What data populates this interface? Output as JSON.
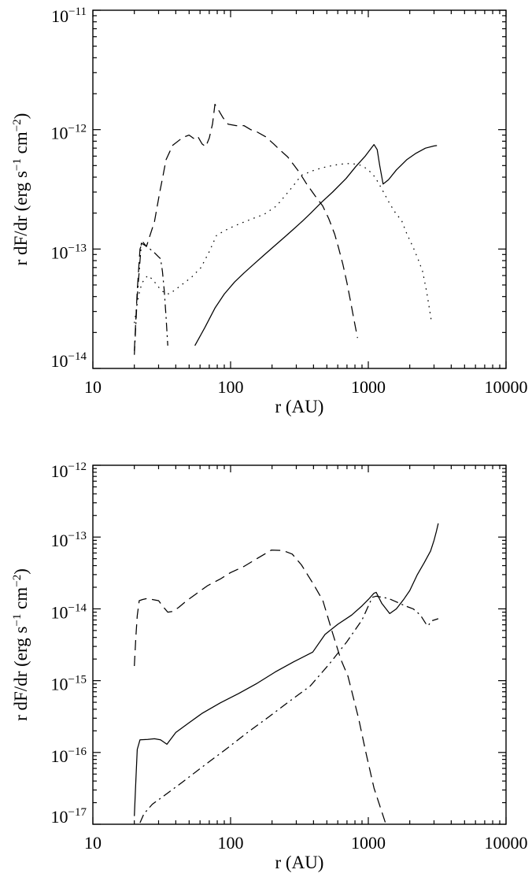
{
  "page": {
    "background": "#ffffff",
    "ink_color": "#000000"
  },
  "chart_data": [
    {
      "id": "top-panel",
      "type": "line",
      "xscale": "log",
      "yscale": "log",
      "title": "",
      "xlabel": "r (AU)",
      "ylabel_parts": [
        [
          "r dF/dr (erg s",
          false
        ],
        [
          "−1",
          true
        ],
        [
          " cm",
          false
        ],
        [
          "−2",
          true
        ],
        [
          ")",
          false
        ]
      ],
      "xlim": [
        10,
        10000
      ],
      "ylim": [
        1e-14,
        1e-11
      ],
      "x_tick_values": [
        10,
        100,
        1000,
        10000
      ],
      "x_tick_labels": [
        "10",
        "100",
        "1000",
        "10000"
      ],
      "y_tick_exponents": [
        -11,
        -12,
        -13,
        -14
      ],
      "grid": false,
      "legend": null,
      "series": [
        {
          "name": "solid",
          "style": "solid",
          "color": "#000000",
          "points": [
            [
              55,
              1.55e-14
            ],
            [
              65,
              2.2e-14
            ],
            [
              77,
              3.2e-14
            ],
            [
              90,
              4.2e-14
            ],
            [
              107,
              5.3e-14
            ],
            [
              125,
              6.3e-14
            ],
            [
              146,
              7.4e-14
            ],
            [
              175,
              8.9e-14
            ],
            [
              206,
              1.05e-13
            ],
            [
              245,
              1.25e-13
            ],
            [
              283,
              1.45e-13
            ],
            [
              330,
              1.7e-13
            ],
            [
              382,
              2e-13
            ],
            [
              455,
              2.45e-13
            ],
            [
              550,
              3e-13
            ],
            [
              690,
              3.9e-13
            ],
            [
              810,
              4.9e-13
            ],
            [
              950,
              6e-13
            ],
            [
              1100,
              7.5e-13
            ],
            [
              1160,
              6.8e-13
            ],
            [
              1210,
              5e-13
            ],
            [
              1280,
              3.5e-13
            ],
            [
              1400,
              3.8e-13
            ],
            [
              1600,
              4.6e-13
            ],
            [
              1900,
              5.6e-13
            ],
            [
              2200,
              6.3e-13
            ],
            [
              2600,
              7e-13
            ],
            [
              3000,
              7.3e-13
            ],
            [
              3150,
              7.35e-13
            ]
          ]
        },
        {
          "name": "dotted",
          "style": "dotted",
          "color": "#000000",
          "points": [
            [
              20,
              2.4e-14
            ],
            [
              21,
              3.5e-14
            ],
            [
              22,
              4.6e-14
            ],
            [
              23,
              5.3e-14
            ],
            [
              25,
              6e-14
            ],
            [
              27,
              5.6e-14
            ],
            [
              30,
              4.8e-14
            ],
            [
              33,
              4.3e-14
            ],
            [
              36,
              4.2e-14
            ],
            [
              44,
              5e-14
            ],
            [
              52,
              5.8e-14
            ],
            [
              61,
              7e-14
            ],
            [
              70,
              9.5e-14
            ],
            [
              79,
              1.3e-13
            ],
            [
              90,
              1.42e-13
            ],
            [
              105,
              1.55e-13
            ],
            [
              120,
              1.65e-13
            ],
            [
              145,
              1.8e-13
            ],
            [
              175,
              1.95e-13
            ],
            [
              216,
              2.3e-13
            ],
            [
              280,
              3.3e-13
            ],
            [
              327,
              4.15e-13
            ],
            [
              410,
              4.6e-13
            ],
            [
              500,
              4.9e-13
            ],
            [
              600,
              5.1e-13
            ],
            [
              700,
              5.2e-13
            ],
            [
              800,
              5.15e-13
            ],
            [
              900,
              5e-13
            ],
            [
              1000,
              4.6e-13
            ],
            [
              1120,
              4e-13
            ],
            [
              1250,
              3.2e-13
            ],
            [
              1430,
              2.4e-13
            ],
            [
              1600,
              1.95e-13
            ],
            [
              1740,
              1.75e-13
            ],
            [
              1900,
              1.35e-13
            ],
            [
              2120,
              1.03e-13
            ],
            [
              2300,
              8.2e-14
            ],
            [
              2480,
              6.5e-14
            ],
            [
              2650,
              4.4e-14
            ],
            [
              2760,
              3.3e-14
            ],
            [
              2870,
              2.5e-14
            ]
          ]
        },
        {
          "name": "dashed",
          "style": "dashed",
          "color": "#000000",
          "points": [
            [
              20,
              1.4e-14
            ],
            [
              21,
              4.5e-14
            ],
            [
              22,
              1e-13
            ],
            [
              23,
              1.15e-13
            ],
            [
              24.5,
              1.05e-13
            ],
            [
              26,
              1.3e-13
            ],
            [
              28,
              1.7e-13
            ],
            [
              30.6,
              3e-13
            ],
            [
              32.3,
              4.1e-13
            ],
            [
              34,
              5.6e-13
            ],
            [
              38,
              7.4e-13
            ],
            [
              45,
              8.6e-13
            ],
            [
              50,
              9e-13
            ],
            [
              55,
              8.3e-13
            ],
            [
              58,
              8.7e-13
            ],
            [
              62,
              7.6e-13
            ],
            [
              66,
              7.2e-13
            ],
            [
              70,
              8.5e-13
            ],
            [
              74,
              1.12e-12
            ],
            [
              77,
              1.63e-12
            ],
            [
              82,
              1.45e-12
            ],
            [
              88,
              1.26e-12
            ],
            [
              96,
              1.11e-12
            ],
            [
              110,
              1.08e-12
            ],
            [
              125,
              1.08e-12
            ],
            [
              140,
              1e-12
            ],
            [
              155,
              9.6e-13
            ],
            [
              180,
              8.7e-13
            ],
            [
              205,
              7.6e-13
            ],
            [
              230,
              6.7e-13
            ],
            [
              260,
              5.9e-13
            ],
            [
              290,
              5e-13
            ],
            [
              315,
              4.4e-13
            ],
            [
              357,
              3.5e-13
            ],
            [
              410,
              2.8e-13
            ],
            [
              466,
              2.3e-13
            ],
            [
              516,
              1.8e-13
            ],
            [
              570,
              1.33e-13
            ],
            [
              607,
              1.03e-13
            ],
            [
              655,
              7.4e-14
            ],
            [
              700,
              5.2e-14
            ],
            [
              745,
              3.6e-14
            ],
            [
              785,
              2.6e-14
            ],
            [
              835,
              1.8e-14
            ]
          ]
        },
        {
          "name": "dash-dot",
          "style": "dash-dot",
          "color": "#000000",
          "points": [
            [
              20,
              1.3e-14
            ],
            [
              21,
              4e-14
            ],
            [
              22.5,
              1.12e-13
            ],
            [
              24,
              1.07e-13
            ],
            [
              26,
              1e-13
            ],
            [
              28,
              9.3e-14
            ],
            [
              30,
              8.6e-14
            ],
            [
              31,
              8.3e-14
            ],
            [
              32,
              6.5e-14
            ],
            [
              33,
              4.5e-14
            ],
            [
              34,
              2.7e-14
            ],
            [
              35,
              1.55e-14
            ]
          ]
        }
      ]
    },
    {
      "id": "bottom-panel",
      "type": "line",
      "xscale": "log",
      "yscale": "log",
      "title": "",
      "xlabel": "r (AU)",
      "ylabel_parts": [
        [
          "r dF/dr (erg s",
          false
        ],
        [
          "−1",
          true
        ],
        [
          " cm",
          false
        ],
        [
          "−2",
          true
        ],
        [
          ")",
          false
        ]
      ],
      "xlim": [
        10,
        10000
      ],
      "ylim": [
        1e-17,
        1e-12
      ],
      "x_tick_values": [
        10,
        100,
        1000,
        10000
      ],
      "x_tick_labels": [
        "10",
        "100",
        "1000",
        "10000"
      ],
      "y_tick_exponents": [
        -12,
        -13,
        -14,
        -15,
        -16,
        -17
      ],
      "grid": false,
      "legend": null,
      "series": [
        {
          "name": "solid",
          "style": "solid",
          "color": "#000000",
          "points": [
            [
              20,
              1.3e-17
            ],
            [
              20.5,
              4e-17
            ],
            [
              21,
              1.1e-16
            ],
            [
              22,
              1.5e-16
            ],
            [
              25,
              1.52e-16
            ],
            [
              28,
              1.55e-16
            ],
            [
              31,
              1.5e-16
            ],
            [
              34.5,
              1.3e-16
            ],
            [
              40,
              1.9e-16
            ],
            [
              50,
              2.6e-16
            ],
            [
              62,
              3.5e-16
            ],
            [
              84,
              4.9e-16
            ],
            [
              114,
              6.6e-16
            ],
            [
              156,
              9.2e-16
            ],
            [
              211,
              1.32e-15
            ],
            [
              287,
              1.83e-15
            ],
            [
              395,
              2.5e-15
            ],
            [
              485,
              4.4e-15
            ],
            [
              600,
              6.1e-15
            ],
            [
              757,
              8.2e-15
            ],
            [
              900,
              1.1e-14
            ],
            [
              1000,
              1.35e-14
            ],
            [
              1100,
              1.65e-14
            ],
            [
              1140,
              1.7e-14
            ],
            [
              1250,
              1.2e-14
            ],
            [
              1430,
              8.6e-15
            ],
            [
              1600,
              1e-14
            ],
            [
              1810,
              1.36e-14
            ],
            [
              2000,
              1.8e-14
            ],
            [
              2270,
              3e-14
            ],
            [
              2550,
              4.4e-14
            ],
            [
              2830,
              6.4e-14
            ],
            [
              3000,
              9e-14
            ],
            [
              3120,
              1.2e-13
            ],
            [
              3220,
              1.55e-13
            ]
          ]
        },
        {
          "name": "dashed",
          "style": "dashed",
          "color": "#000000",
          "points": [
            [
              20,
              1.6e-15
            ],
            [
              20.5,
              4e-15
            ],
            [
              21,
              8e-15
            ],
            [
              21.7,
              1.3e-14
            ],
            [
              23,
              1.35e-14
            ],
            [
              25,
              1.4e-14
            ],
            [
              27,
              1.35e-14
            ],
            [
              30,
              1.3e-14
            ],
            [
              32,
              1.1e-14
            ],
            [
              35,
              9e-15
            ],
            [
              38,
              9.2e-15
            ],
            [
              42,
              1.05e-14
            ],
            [
              48,
              1.3e-14
            ],
            [
              57,
              1.65e-14
            ],
            [
              68,
              2.1e-14
            ],
            [
              84,
              2.6e-14
            ],
            [
              100,
              3.2e-14
            ],
            [
              125,
              3.9e-14
            ],
            [
              155,
              5e-14
            ],
            [
              198,
              6.6e-14
            ],
            [
              240,
              6.5e-14
            ],
            [
              280,
              5.8e-14
            ],
            [
              327,
              4.1e-14
            ],
            [
              400,
              2.2e-14
            ],
            [
              468,
              1.3e-14
            ],
            [
              547,
              4.8e-15
            ],
            [
              630,
              2e-15
            ],
            [
              712,
              1.15e-15
            ],
            [
              850,
              3e-16
            ],
            [
              960,
              1e-16
            ],
            [
              1100,
              3.2e-17
            ],
            [
              1330,
              1.05e-17
            ]
          ]
        },
        {
          "name": "dash-dot",
          "style": "dash-dot",
          "color": "#000000",
          "points": [
            [
              22,
              1.05e-17
            ],
            [
              23.5,
              1.4e-17
            ],
            [
              27,
              1.9e-17
            ],
            [
              32,
              2.4e-17
            ],
            [
              45,
              3.9e-17
            ],
            [
              65,
              6.7e-17
            ],
            [
              92,
              1.1e-16
            ],
            [
              130,
              1.84e-16
            ],
            [
              186,
              3.05e-16
            ],
            [
              265,
              5.1e-16
            ],
            [
              378,
              8.4e-16
            ],
            [
              520,
              1.7e-15
            ],
            [
              700,
              3.5e-15
            ],
            [
              900,
              7e-15
            ],
            [
              1070,
              1.45e-14
            ],
            [
              1140,
              1.5e-14
            ],
            [
              1400,
              1.4e-14
            ],
            [
              1600,
              1.25e-14
            ],
            [
              1850,
              1.1e-14
            ],
            [
              2120,
              1e-14
            ],
            [
              2390,
              8.2e-15
            ],
            [
              2620,
              6.2e-15
            ],
            [
              2720,
              5.8e-15
            ],
            [
              2870,
              6.8e-15
            ],
            [
              3220,
              7.3e-15
            ]
          ]
        }
      ]
    }
  ]
}
